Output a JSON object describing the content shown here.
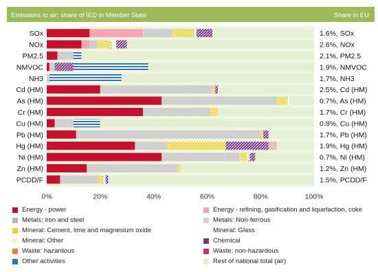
{
  "chart_data": {
    "type": "bar",
    "orientation": "horizontal",
    "stacked": true,
    "title": "Emissions to air: share of IED in Member State",
    "right_header": "Share in EU",
    "xlim": [
      0,
      100
    ],
    "x_ticks": [
      "0%",
      "20%",
      "40%",
      "60%",
      "80%",
      "100%"
    ],
    "categories": [
      "SOx",
      "NOx",
      "PM2.5",
      "NMVOC",
      "NH3",
      "Cd (HM)",
      "As (HM)",
      "Cr (HM)",
      "Cu (HM)",
      "Pb (HM)",
      "Hg (HM)",
      "Ni (HM)",
      "Zn (HM)",
      "PCDD/F"
    ],
    "share_labels": [
      "1.6%, SOx",
      "2.6%, NOx",
      "2.1%, PM2.5",
      "1.9%, NMVOC",
      "1.7%, NH3",
      "2.5%, Cd (HM)",
      "0.7%, As (HM)",
      "1.7%, Cr (HM)",
      "0.8%, Cu (HM)",
      "1.7%, Pb (HM)",
      "1.9%, Hg (HM)",
      "0.7%, Ni (HM)",
      "1.2%, Zn (HM)",
      "1.5%, PCDD/F"
    ],
    "series": [
      {
        "name": "Energy - power",
        "color": "#c8102e",
        "pattern": "solid",
        "values": [
          16,
          13,
          4,
          1,
          0,
          20,
          43,
          36,
          3,
          11,
          33,
          43,
          15,
          5
        ]
      },
      {
        "name": "Energy - refining, gasification and liquefaction, coke",
        "color": "#f4a6b0",
        "pattern": "solid",
        "values": [
          20,
          3,
          0,
          0,
          0,
          0,
          0,
          0,
          0,
          0,
          0,
          0,
          0,
          0
        ]
      },
      {
        "name": "Metals: iron and steel",
        "color": "#b4b4b4",
        "pattern": "dots",
        "values": [
          11,
          0,
          5,
          2,
          1,
          33,
          12,
          24,
          5,
          59,
          12,
          24,
          11,
          14
        ]
      },
      {
        "name": "Metals: Non-ferrous",
        "color": "#cfcfcf",
        "pattern": "solid",
        "values": [
          0,
          3,
          1,
          0,
          0,
          9,
          31,
          1,
          2,
          10,
          0,
          5,
          23,
          0
        ]
      },
      {
        "name": "Mineral: Cement, lime and magnesium oxide",
        "color": "#f2d224",
        "pattern": "hatch",
        "values": [
          8,
          5,
          0,
          0,
          0,
          1,
          4,
          3,
          0,
          1,
          22,
          3,
          1,
          2
        ]
      },
      {
        "name": "Mineral: Glass",
        "color": "#ffffff",
        "pattern": "dots-dark",
        "values": [
          1,
          1,
          0,
          0,
          0,
          0,
          1,
          0,
          0,
          0,
          0,
          1,
          0,
          1
        ]
      },
      {
        "name": "Mineral: Other",
        "color": "#faf3c8",
        "pattern": "solid",
        "values": [
          0,
          1,
          0,
          0,
          0,
          0,
          0,
          0,
          0,
          0,
          0,
          0,
          0,
          0
        ]
      },
      {
        "name": "Chemical",
        "color": "#7a2e8e",
        "pattern": "hatch",
        "values": [
          6,
          4,
          0,
          7,
          0,
          1,
          0,
          0,
          0,
          2,
          16,
          2,
          0,
          1
        ]
      },
      {
        "name": "Waste: hazardous",
        "color": "#e0823a",
        "pattern": "dots",
        "values": [
          0,
          0,
          0,
          0,
          0,
          0,
          0,
          0,
          0,
          0,
          3,
          0,
          0,
          0
        ]
      },
      {
        "name": "Waste: non-hazardous",
        "color": "#b23a6e",
        "pattern": "solid",
        "values": [
          0,
          0,
          0,
          0,
          0,
          0,
          0,
          0,
          0,
          0,
          0,
          0,
          0,
          0
        ]
      },
      {
        "name": "Other activities",
        "color": "#2e75b6",
        "pattern": "hlines",
        "values": [
          0,
          0,
          3,
          28,
          27,
          0,
          0,
          0,
          10,
          0,
          0,
          0,
          0,
          0
        ]
      },
      {
        "name": "Rest of national total (air)",
        "color": "#e6efd2",
        "pattern": "solid",
        "values": [
          38,
          70,
          87,
          62,
          72,
          36,
          9,
          36,
          80,
          17,
          14,
          22,
          50,
          77
        ]
      }
    ],
    "legend": [
      "Energy - power",
      "Energy - refining, gasification and liquefaction, coke",
      "Metals: iron and steel",
      "Metals: Non-ferrous",
      "Mineral: Cement, lime and magnesium oxide",
      "Mineral: Glass",
      "Mineral: Other",
      "Chemical",
      "Waste: hazardous",
      "Waste: non-hazardous",
      "Other activities",
      "Rest of national total (air)"
    ],
    "legend_placement": "bottom",
    "header_color": "#9bbb59",
    "grid": false
  }
}
